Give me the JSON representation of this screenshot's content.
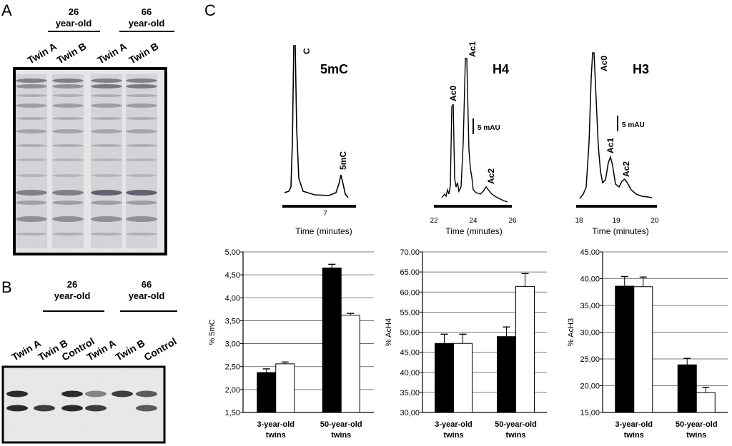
{
  "panels": {
    "A": "A",
    "B": "B",
    "C": "C"
  },
  "panel_A": {
    "lanes": [
      "Twin A",
      "Twin B",
      "Twin A",
      "Twin B"
    ],
    "groups": [
      "26\nyear-old",
      "66\nyear-old"
    ]
  },
  "panel_B": {
    "lanes": [
      "Twin A",
      "Twin B",
      "Control",
      "Twin A",
      "Twin B",
      "Control"
    ],
    "groups": [
      "26\nyear-old",
      "66\nyear-old"
    ]
  },
  "chromatograms": [
    {
      "title": "5mC",
      "peaks": [
        "C",
        "5mC"
      ],
      "xticks": [
        "7"
      ],
      "xlabel": "Time (minutes)",
      "scale": ""
    },
    {
      "title": "H4",
      "peaks": [
        "Ac0",
        "Ac1",
        "Ac2"
      ],
      "xticks": [
        "22",
        "24",
        "26"
      ],
      "xlabel": "Time (minutes)",
      "scale": "5 mAU"
    },
    {
      "title": "H3",
      "peaks": [
        "Ac0",
        "Ac1",
        "Ac2"
      ],
      "xticks": [
        "18",
        "19",
        "20"
      ],
      "xlabel": "Time (minutes)",
      "scale": "5 mAU"
    }
  ],
  "chart_data": [
    {
      "type": "bar",
      "ylabel": "% 5mC",
      "ylim": [
        1.5,
        5.0
      ],
      "yticks": [
        "1,50",
        "2,00",
        "2,50",
        "3,00",
        "3,50",
        "4,00",
        "4,50",
        "5,00"
      ],
      "categories": [
        "3-year-old\ntwins",
        "50-year-old\ntwins"
      ],
      "series": [
        {
          "color": "#000000",
          "values": [
            2.37,
            4.65
          ],
          "errors": [
            0.08,
            0.08
          ]
        },
        {
          "color": "#ffffff",
          "values": [
            2.56,
            3.62
          ],
          "errors": [
            0.04,
            0.04
          ]
        }
      ],
      "grid": true
    },
    {
      "type": "bar",
      "ylabel": "% AcH4",
      "ylim": [
        30,
        70
      ],
      "yticks": [
        "30,00",
        "35,00",
        "40,00",
        "45,00",
        "50,00",
        "55,00",
        "60,00",
        "65,00",
        "70,00"
      ],
      "categories": [
        "3-year-old\ntwins",
        "50-year-old\ntwins"
      ],
      "series": [
        {
          "color": "#000000",
          "values": [
            47.2,
            48.9
          ],
          "errors": [
            2.3,
            2.4
          ]
        },
        {
          "color": "#ffffff",
          "values": [
            47.2,
            61.4
          ],
          "errors": [
            2.3,
            3.2
          ]
        }
      ],
      "grid": true
    },
    {
      "type": "bar",
      "ylabel": "% AcH3",
      "ylim": [
        15,
        45
      ],
      "yticks": [
        "15,00",
        "20,00",
        "25,00",
        "30,00",
        "35,00",
        "40,00",
        "45,00"
      ],
      "categories": [
        "3-year-old\ntwins",
        "50-year-old\ntwins"
      ],
      "series": [
        {
          "color": "#000000",
          "values": [
            38.6,
            23.9
          ],
          "errors": [
            1.8,
            1.2
          ]
        },
        {
          "color": "#ffffff",
          "values": [
            38.5,
            18.7
          ],
          "errors": [
            1.8,
            1.0
          ]
        }
      ],
      "grid": true
    }
  ]
}
